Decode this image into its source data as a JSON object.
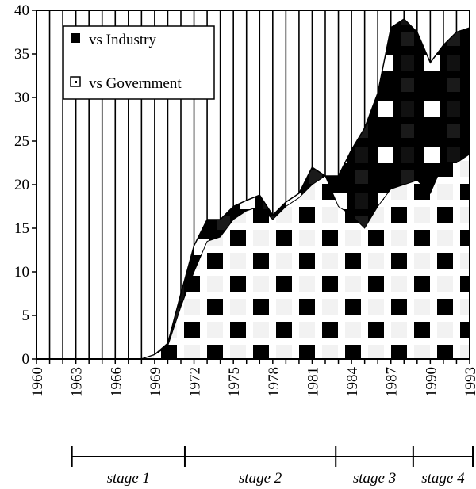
{
  "chart_data": {
    "type": "area",
    "stacked": true,
    "x": [
      1960,
      1961,
      1962,
      1963,
      1964,
      1965,
      1966,
      1967,
      1968,
      1969,
      1970,
      1971,
      1972,
      1973,
      1974,
      1975,
      1976,
      1977,
      1978,
      1979,
      1980,
      1981,
      1982,
      1983,
      1984,
      1985,
      1986,
      1987,
      1988,
      1989,
      1990,
      1991,
      1992,
      1993
    ],
    "series": [
      {
        "name": "vs Government",
        "values": [
          0,
          0,
          0,
          0,
          0,
          0,
          0,
          0,
          0,
          0.5,
          1.5,
          6,
          10,
          13.5,
          14,
          16,
          17,
          17.5,
          16,
          17.5,
          18.5,
          20,
          21,
          17.5,
          16.5,
          15,
          17.5,
          19.5,
          20,
          20.5,
          19,
          22.5,
          22.5,
          23.5
        ]
      },
      {
        "name": "vs Industry",
        "values": [
          0,
          0,
          0,
          0,
          0,
          0,
          0,
          0,
          0,
          0,
          0.3,
          1.5,
          3,
          2.5,
          2,
          1.5,
          1.2,
          1.3,
          0.5,
          0.5,
          0.5,
          2,
          0,
          3.5,
          7.5,
          11.5,
          13,
          18.5,
          19,
          17,
          15,
          13.5,
          15,
          14.5
        ]
      }
    ],
    "xlim": [
      1960,
      1993
    ],
    "ylim": [
      0,
      40
    ],
    "x_ticks": [
      1960,
      1963,
      1966,
      1969,
      1972,
      1975,
      1978,
      1981,
      1984,
      1987,
      1990,
      1993
    ],
    "y_ticks": [
      0,
      5,
      10,
      15,
      20,
      25,
      30,
      35,
      40
    ],
    "vertical_grid_step": 1,
    "legend_position": "upper-left",
    "colors": {
      "industry": "#000000",
      "government": "#ffffff"
    },
    "stages": [
      {
        "label": "stage 1",
        "start": 1962.7,
        "end": 1971.3
      },
      {
        "label": "stage 2",
        "start": 1971.3,
        "end": 1982.8
      },
      {
        "label": "stage 3",
        "start": 1982.8,
        "end": 1988.7
      },
      {
        "label": "stage 4",
        "start": 1988.7,
        "end": 1993.5
      }
    ]
  }
}
